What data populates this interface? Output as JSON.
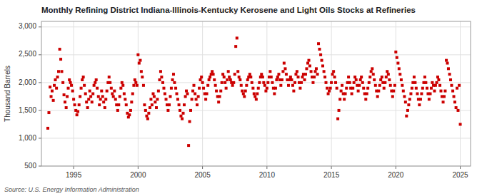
{
  "chart_data": {
    "type": "scatter",
    "title": "Monthly Refining District Indiana-Illinois-Kentucky Kerosene and Light Oils Stocks at Refineries",
    "ylabel": "Thousand Barrels",
    "source": "Source: U.S. Energy Information Administration",
    "color": "#cc0000",
    "marker": "square",
    "grid": true,
    "xlim": [
      1992.5,
      2025.8
    ],
    "ylim": [
      500,
      3100
    ],
    "xticks": [
      1995,
      2000,
      2005,
      2010,
      2015,
      2020,
      2025
    ],
    "yticks": [
      500,
      {
        "value": 1000,
        "label": "1,000"
      },
      {
        "value": 1500,
        "label": "1,500"
      },
      {
        "value": 2000,
        "label": "2,000"
      },
      {
        "value": 2500,
        "label": "2,500"
      },
      {
        "value": 3000,
        "label": "3,000"
      }
    ],
    "x": [
      1993.0,
      1993.08,
      1993.17,
      1993.25,
      1993.33,
      1993.42,
      1993.5,
      1993.58,
      1993.67,
      1993.75,
      1993.83,
      1993.92,
      1994.0,
      1994.08,
      1994.17,
      1994.25,
      1994.33,
      1994.42,
      1994.5,
      1994.58,
      1994.67,
      1994.75,
      1994.83,
      1994.92,
      1995.0,
      1995.08,
      1995.17,
      1995.25,
      1995.33,
      1995.42,
      1995.5,
      1995.58,
      1995.67,
      1995.75,
      1995.83,
      1995.92,
      1996.0,
      1996.08,
      1996.17,
      1996.25,
      1996.33,
      1996.42,
      1996.5,
      1996.58,
      1996.67,
      1996.75,
      1996.83,
      1996.92,
      1997.0,
      1997.08,
      1997.17,
      1997.25,
      1997.33,
      1997.42,
      1997.5,
      1997.58,
      1997.67,
      1997.75,
      1997.83,
      1997.92,
      1998.0,
      1998.08,
      1998.17,
      1998.25,
      1998.33,
      1998.42,
      1998.5,
      1998.58,
      1998.67,
      1998.75,
      1998.83,
      1998.92,
      1999.0,
      1999.08,
      1999.17,
      1999.25,
      1999.33,
      1999.42,
      1999.5,
      1999.58,
      1999.67,
      1999.75,
      1999.83,
      1999.92,
      2000.0,
      2000.08,
      2000.17,
      2000.25,
      2000.33,
      2000.42,
      2000.5,
      2000.58,
      2000.67,
      2000.75,
      2000.83,
      2000.92,
      2001.0,
      2001.08,
      2001.17,
      2001.25,
      2001.33,
      2001.42,
      2001.5,
      2001.58,
      2001.67,
      2001.75,
      2001.83,
      2001.92,
      2002.0,
      2002.08,
      2002.17,
      2002.25,
      2002.33,
      2002.42,
      2002.5,
      2002.58,
      2002.67,
      2002.75,
      2002.83,
      2002.92,
      2003.0,
      2003.08,
      2003.17,
      2003.25,
      2003.33,
      2003.42,
      2003.5,
      2003.58,
      2003.67,
      2003.75,
      2003.83,
      2003.92,
      2004.0,
      2004.08,
      2004.17,
      2004.25,
      2004.33,
      2004.42,
      2004.5,
      2004.58,
      2004.67,
      2004.75,
      2004.83,
      2004.92,
      2005.0,
      2005.08,
      2005.17,
      2005.25,
      2005.33,
      2005.42,
      2005.5,
      2005.58,
      2005.67,
      2005.75,
      2005.83,
      2005.92,
      2006.0,
      2006.08,
      2006.17,
      2006.25,
      2006.33,
      2006.42,
      2006.5,
      2006.58,
      2006.67,
      2006.75,
      2006.83,
      2006.92,
      2007.0,
      2007.08,
      2007.17,
      2007.25,
      2007.33,
      2007.42,
      2007.5,
      2007.58,
      2007.67,
      2007.75,
      2007.83,
      2007.92,
      2008.0,
      2008.08,
      2008.17,
      2008.25,
      2008.33,
      2008.42,
      2008.5,
      2008.58,
      2008.67,
      2008.75,
      2008.83,
      2008.92,
      2009.0,
      2009.08,
      2009.17,
      2009.25,
      2009.33,
      2009.42,
      2009.5,
      2009.58,
      2009.67,
      2009.75,
      2009.83,
      2009.92,
      2010.0,
      2010.08,
      2010.17,
      2010.25,
      2010.33,
      2010.42,
      2010.5,
      2010.58,
      2010.67,
      2010.75,
      2010.83,
      2010.92,
      2011.0,
      2011.08,
      2011.17,
      2011.25,
      2011.33,
      2011.42,
      2011.5,
      2011.58,
      2011.67,
      2011.75,
      2011.83,
      2011.92,
      2012.0,
      2012.08,
      2012.17,
      2012.25,
      2012.33,
      2012.42,
      2012.5,
      2012.58,
      2012.67,
      2012.75,
      2012.83,
      2012.92,
      2013.0,
      2013.08,
      2013.17,
      2013.25,
      2013.33,
      2013.42,
      2013.5,
      2013.58,
      2013.67,
      2013.75,
      2013.83,
      2013.92,
      2014.0,
      2014.08,
      2014.17,
      2014.25,
      2014.33,
      2014.42,
      2014.5,
      2014.58,
      2014.67,
      2014.75,
      2014.83,
      2014.92,
      2015.0,
      2015.08,
      2015.17,
      2015.25,
      2015.33,
      2015.42,
      2015.5,
      2015.58,
      2015.67,
      2015.75,
      2015.83,
      2015.92,
      2016.0,
      2016.08,
      2016.17,
      2016.25,
      2016.33,
      2016.42,
      2016.5,
      2016.58,
      2016.67,
      2016.75,
      2016.83,
      2016.92,
      2017.0,
      2017.08,
      2017.17,
      2017.25,
      2017.33,
      2017.42,
      2017.5,
      2017.58,
      2017.67,
      2017.75,
      2017.83,
      2017.92,
      2018.0,
      2018.08,
      2018.17,
      2018.25,
      2018.33,
      2018.42,
      2018.5,
      2018.58,
      2018.67,
      2018.75,
      2018.83,
      2018.92,
      2019.0,
      2019.08,
      2019.17,
      2019.25,
      2019.33,
      2019.42,
      2019.5,
      2019.58,
      2019.67,
      2019.75,
      2019.83,
      2019.92,
      2020.0,
      2020.08,
      2020.17,
      2020.25,
      2020.33,
      2020.42,
      2020.5,
      2020.58,
      2020.67,
      2020.75,
      2020.83,
      2020.92,
      2021.0,
      2021.08,
      2021.17,
      2021.25,
      2021.33,
      2021.42,
      2021.5,
      2021.58,
      2021.67,
      2021.75,
      2021.83,
      2021.92,
      2022.0,
      2022.08,
      2022.17,
      2022.25,
      2022.33,
      2022.42,
      2022.5,
      2022.58,
      2022.67,
      2022.75,
      2022.83,
      2022.92,
      2023.0,
      2023.08,
      2023.17,
      2023.25,
      2023.33,
      2023.42,
      2023.5,
      2023.58,
      2023.67,
      2023.75,
      2023.83,
      2023.92,
      2024.0,
      2024.08,
      2024.17,
      2024.25,
      2024.33,
      2024.42,
      2024.5,
      2024.58,
      2024.67,
      2024.75,
      2024.83,
      2024.92,
      2025.0
    ],
    "values": [
      1180,
      1460,
      1920,
      1750,
      1850,
      1680,
      1950,
      2050,
      1900,
      2100,
      2200,
      2600,
      2420,
      2200,
      2000,
      1780,
      1650,
      1550,
      1750,
      1900,
      2050,
      2000,
      1950,
      1850,
      1700,
      1600,
      1500,
      1420,
      1480,
      1600,
      1750,
      1900,
      2050,
      2100,
      1950,
      1800,
      1650,
      1550,
      1700,
      1850,
      1750,
      1650,
      1800,
      1950,
      2000,
      2050,
      1900,
      1750,
      1600,
      1700,
      1850,
      1750,
      1650,
      1550,
      1700,
      1850,
      2000,
      2100,
      2000,
      1900,
      1800,
      1750,
      1850,
      1700,
      1600,
      1500,
      1600,
      1750,
      1900,
      2000,
      1950,
      1800,
      1700,
      1600,
      1450,
      1380,
      1420,
      1500,
      1650,
      1800,
      1950,
      2050,
      2000,
      1950,
      2500,
      2350,
      2400,
      2200,
      2100,
      1950,
      1600,
      1500,
      1400,
      1350,
      1450,
      1550,
      1700,
      1600,
      1800,
      1750,
      1650,
      1550,
      1700,
      1850,
      2050,
      2200,
      2100,
      2000,
      1900,
      1800,
      1700,
      1600,
      1500,
      1600,
      1750,
      1900,
      2050,
      2150,
      2000,
      1900,
      1800,
      1700,
      1600,
      1500,
      1400,
      1350,
      1450,
      1600,
      1750,
      1850,
      1800,
      870,
      1300,
      1500,
      1700,
      1850,
      1950,
      1800,
      1700,
      1600,
      1750,
      1900,
      2050,
      2100,
      2000,
      1900,
      1800,
      1700,
      1800,
      1950,
      2050,
      2100,
      2150,
      2200,
      2150,
      2050,
      1950,
      1850,
      1750,
      1650,
      1750,
      1850,
      2000,
      2150,
      2100,
      2000,
      1900,
      2050,
      2200,
      2100,
      2050,
      2000,
      1950,
      2000,
      2150,
      2650,
      2800,
      2200,
      2100,
      2050,
      1950,
      1850,
      1800,
      1750,
      1850,
      1950,
      2050,
      2100,
      2150,
      2100,
      2000,
      1900,
      1800,
      1750,
      1700,
      1800,
      1900,
      2000,
      2100,
      2150,
      2100,
      2000,
      1950,
      1850,
      1900,
      2000,
      2100,
      2200,
      2100,
      2000,
      1900,
      1800,
      1900,
      2050,
      2100,
      2150,
      2050,
      1950,
      2050,
      2200,
      2350,
      2250,
      2150,
      2050,
      1950,
      2050,
      2100,
      2050,
      1950,
      1850,
      2000,
      2150,
      2200,
      2100,
      2000,
      1900,
      2000,
      2100,
      2150,
      2050,
      2150,
      2250,
      2350,
      2400,
      2300,
      2200,
      2100,
      2000,
      2100,
      2200,
      2250,
      2150,
      2700,
      2600,
      2500,
      2400,
      2300,
      2200,
      2100,
      2000,
      1900,
      1800,
      1850,
      1900,
      2000,
      2150,
      2200,
      2100,
      2000,
      1900,
      1350,
      1500,
      1700,
      1850,
      1950,
      1800,
      1700,
      1800,
      1900,
      2000,
      2100,
      2000,
      1900,
      1800,
      1900,
      2000,
      2100,
      2050,
      1950,
      1850,
      1950,
      2050,
      2100,
      2000,
      1900,
      1800,
      1700,
      1800,
      1900,
      2000,
      2100,
      2200,
      2250,
      2150,
      2050,
      1950,
      1850,
      1750,
      1850,
      1950,
      2050,
      2100,
      2000,
      1900,
      2000,
      2100,
      2200,
      2150,
      2050,
      1950,
      1850,
      1750,
      1850,
      1950,
      2550,
      2450,
      2350,
      2250,
      2150,
      2050,
      1950,
      1850,
      1750,
      1650,
      1400,
      1500,
      1600,
      1700,
      1800,
      1900,
      2000,
      2100,
      2000,
      1900,
      1800,
      1700,
      1600,
      1700,
      1800,
      1900,
      2000,
      2100,
      2000,
      1900,
      1800,
      1700,
      1800,
      1900,
      2000,
      1950,
      1850,
      1950,
      2000,
      2100,
      2050,
      1950,
      1850,
      1750,
      1650,
      1750,
      1850,
      2400,
      2350,
      2250,
      2150,
      2050,
      1950,
      1850,
      1750,
      1650,
      1550,
      1900,
      1500,
      1950,
      1250
    ]
  }
}
